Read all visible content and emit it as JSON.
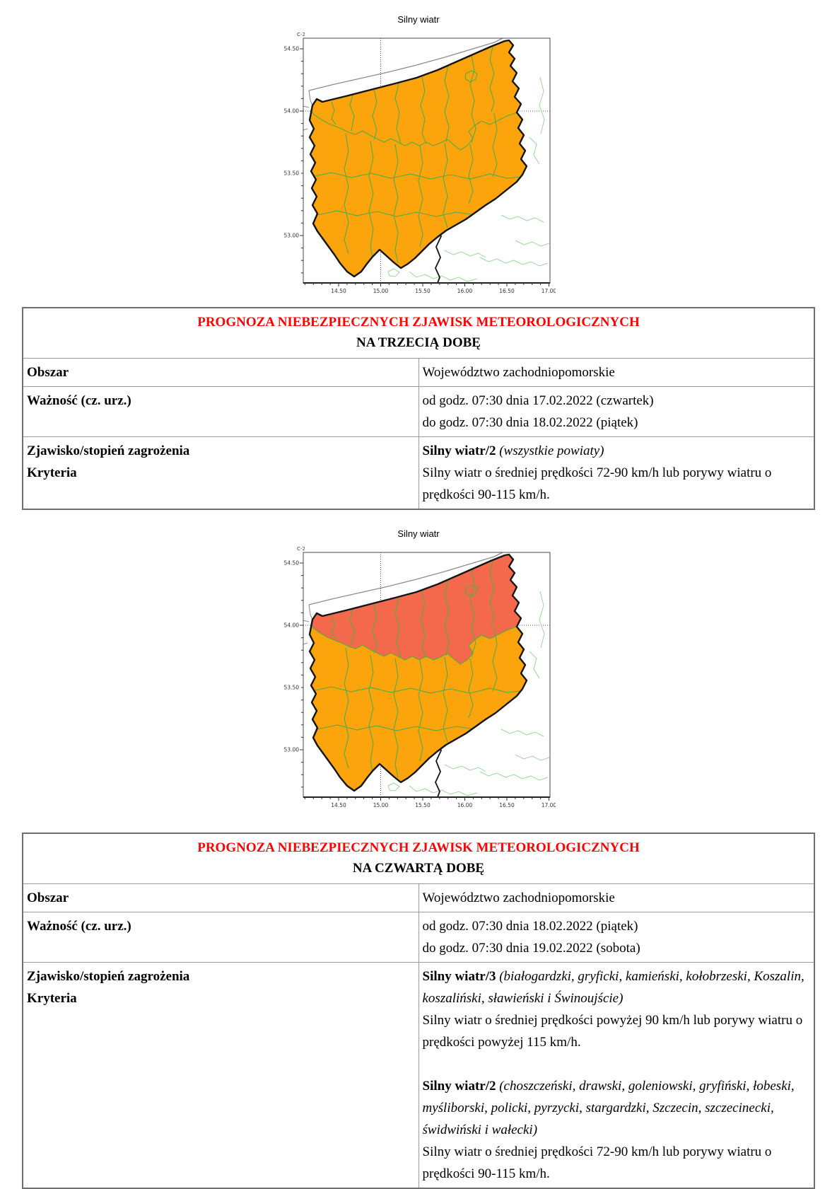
{
  "colors": {
    "warning_orange": "#FBA40C",
    "warning_red": "#F4694C",
    "county_line_green": "#54AC45",
    "neighbor_green": "#9ED69B",
    "border_black": "#141414",
    "sea_gray": "#8C8C8C",
    "header_red": "#FF0000",
    "axis_gray": "#555555"
  },
  "maps": [
    {
      "title": "Silny wiatr",
      "corner_label": "C-2",
      "y_ticks": [
        "54.50",
        "54.00",
        "53.50",
        "53.00"
      ],
      "x_ticks": [
        "14.50",
        "15.00",
        "15.50",
        "16.00",
        "16.50",
        "17.00"
      ],
      "north_red": false
    },
    {
      "title": "Silny wiatr",
      "corner_label": "C-2",
      "y_ticks": [
        "54.50",
        "54.00",
        "53.50",
        "53.00"
      ],
      "x_ticks": [
        "14.50",
        "15.00",
        "15.50",
        "16.00",
        "16.50",
        "17.00"
      ],
      "north_red": true
    }
  ],
  "tables": [
    {
      "title_red": "PROGNOZA NIEBEZPIECZNYCH ZJAWISK METEOROLOGICZNYCH",
      "title_black": "NA TRZECIĄ DOBĘ",
      "rows": [
        {
          "label_lines": [
            "Obszar"
          ],
          "content": [
            [
              {
                "t": "Województwo zachodniopomorskie"
              }
            ]
          ]
        },
        {
          "label_lines": [
            "Ważność (cz. urz.)"
          ],
          "content": [
            [
              {
                "t": "od godz. 07:30 dnia 17.02.2022 (czwartek)"
              }
            ],
            [
              {
                "t": "do godz. 07:30 dnia 18.02.2022 (piątek)"
              }
            ]
          ]
        },
        {
          "label_lines": [
            "Zjawisko/stopień zagrożenia",
            "Kryteria"
          ],
          "content": [
            [
              {
                "t": "Silny wiatr/2",
                "b": 1
              },
              {
                "t": " "
              },
              {
                "t": "(wszystkie powiaty)",
                "i": 1
              }
            ],
            [
              {
                "t": "Silny wiatr o średniej prędkości 72-90 km/h lub porywy wiatru o prędkości 90-115 km/h."
              }
            ]
          ]
        }
      ]
    },
    {
      "title_red": "PROGNOZA NIEBEZPIECZNYCH ZJAWISK METEOROLOGICZNYCH",
      "title_black": "NA CZWARTĄ DOBĘ",
      "rows": [
        {
          "label_lines": [
            "Obszar"
          ],
          "content": [
            [
              {
                "t": "Województwo zachodniopomorskie"
              }
            ]
          ]
        },
        {
          "label_lines": [
            "Ważność (cz. urz.)"
          ],
          "content": [
            [
              {
                "t": "od godz. 07:30 dnia 18.02.2022 (piątek)"
              }
            ],
            [
              {
                "t": "do godz. 07:30 dnia 19.02.2022 (sobota)"
              }
            ]
          ]
        },
        {
          "label_lines": [
            "Zjawisko/stopień zagrożenia",
            "Kryteria"
          ],
          "content": [
            [
              {
                "t": "Silny wiatr/3",
                "b": 1
              },
              {
                "t": " "
              },
              {
                "t": "(białogardzki, gryficki, kamieński, kołobrzeski, Koszalin, koszaliński, sławieński i Świnoujście)",
                "i": 1
              }
            ],
            [
              {
                "t": "Silny wiatr o średniej prędkości powyżej 90 km/h lub porywy wiatru o prędkości powyżej 115 km/h."
              }
            ],
            [],
            [
              {
                "t": "Silny wiatr/2",
                "b": 1
              },
              {
                "t": " "
              },
              {
                "t": "(choszczeński, drawski, goleniowski, gryfiński, łobeski, myśliborski, policki, pyrzycki, stargardzki, Szczecin, szczecinecki, świdwiński i wałecki)",
                "i": 1
              }
            ],
            [
              {
                "t": "Silny wiatr o średniej prędkości 72-90 km/h lub porywy wiatru o prędkości 90-115 km/h."
              }
            ]
          ]
        }
      ]
    }
  ]
}
